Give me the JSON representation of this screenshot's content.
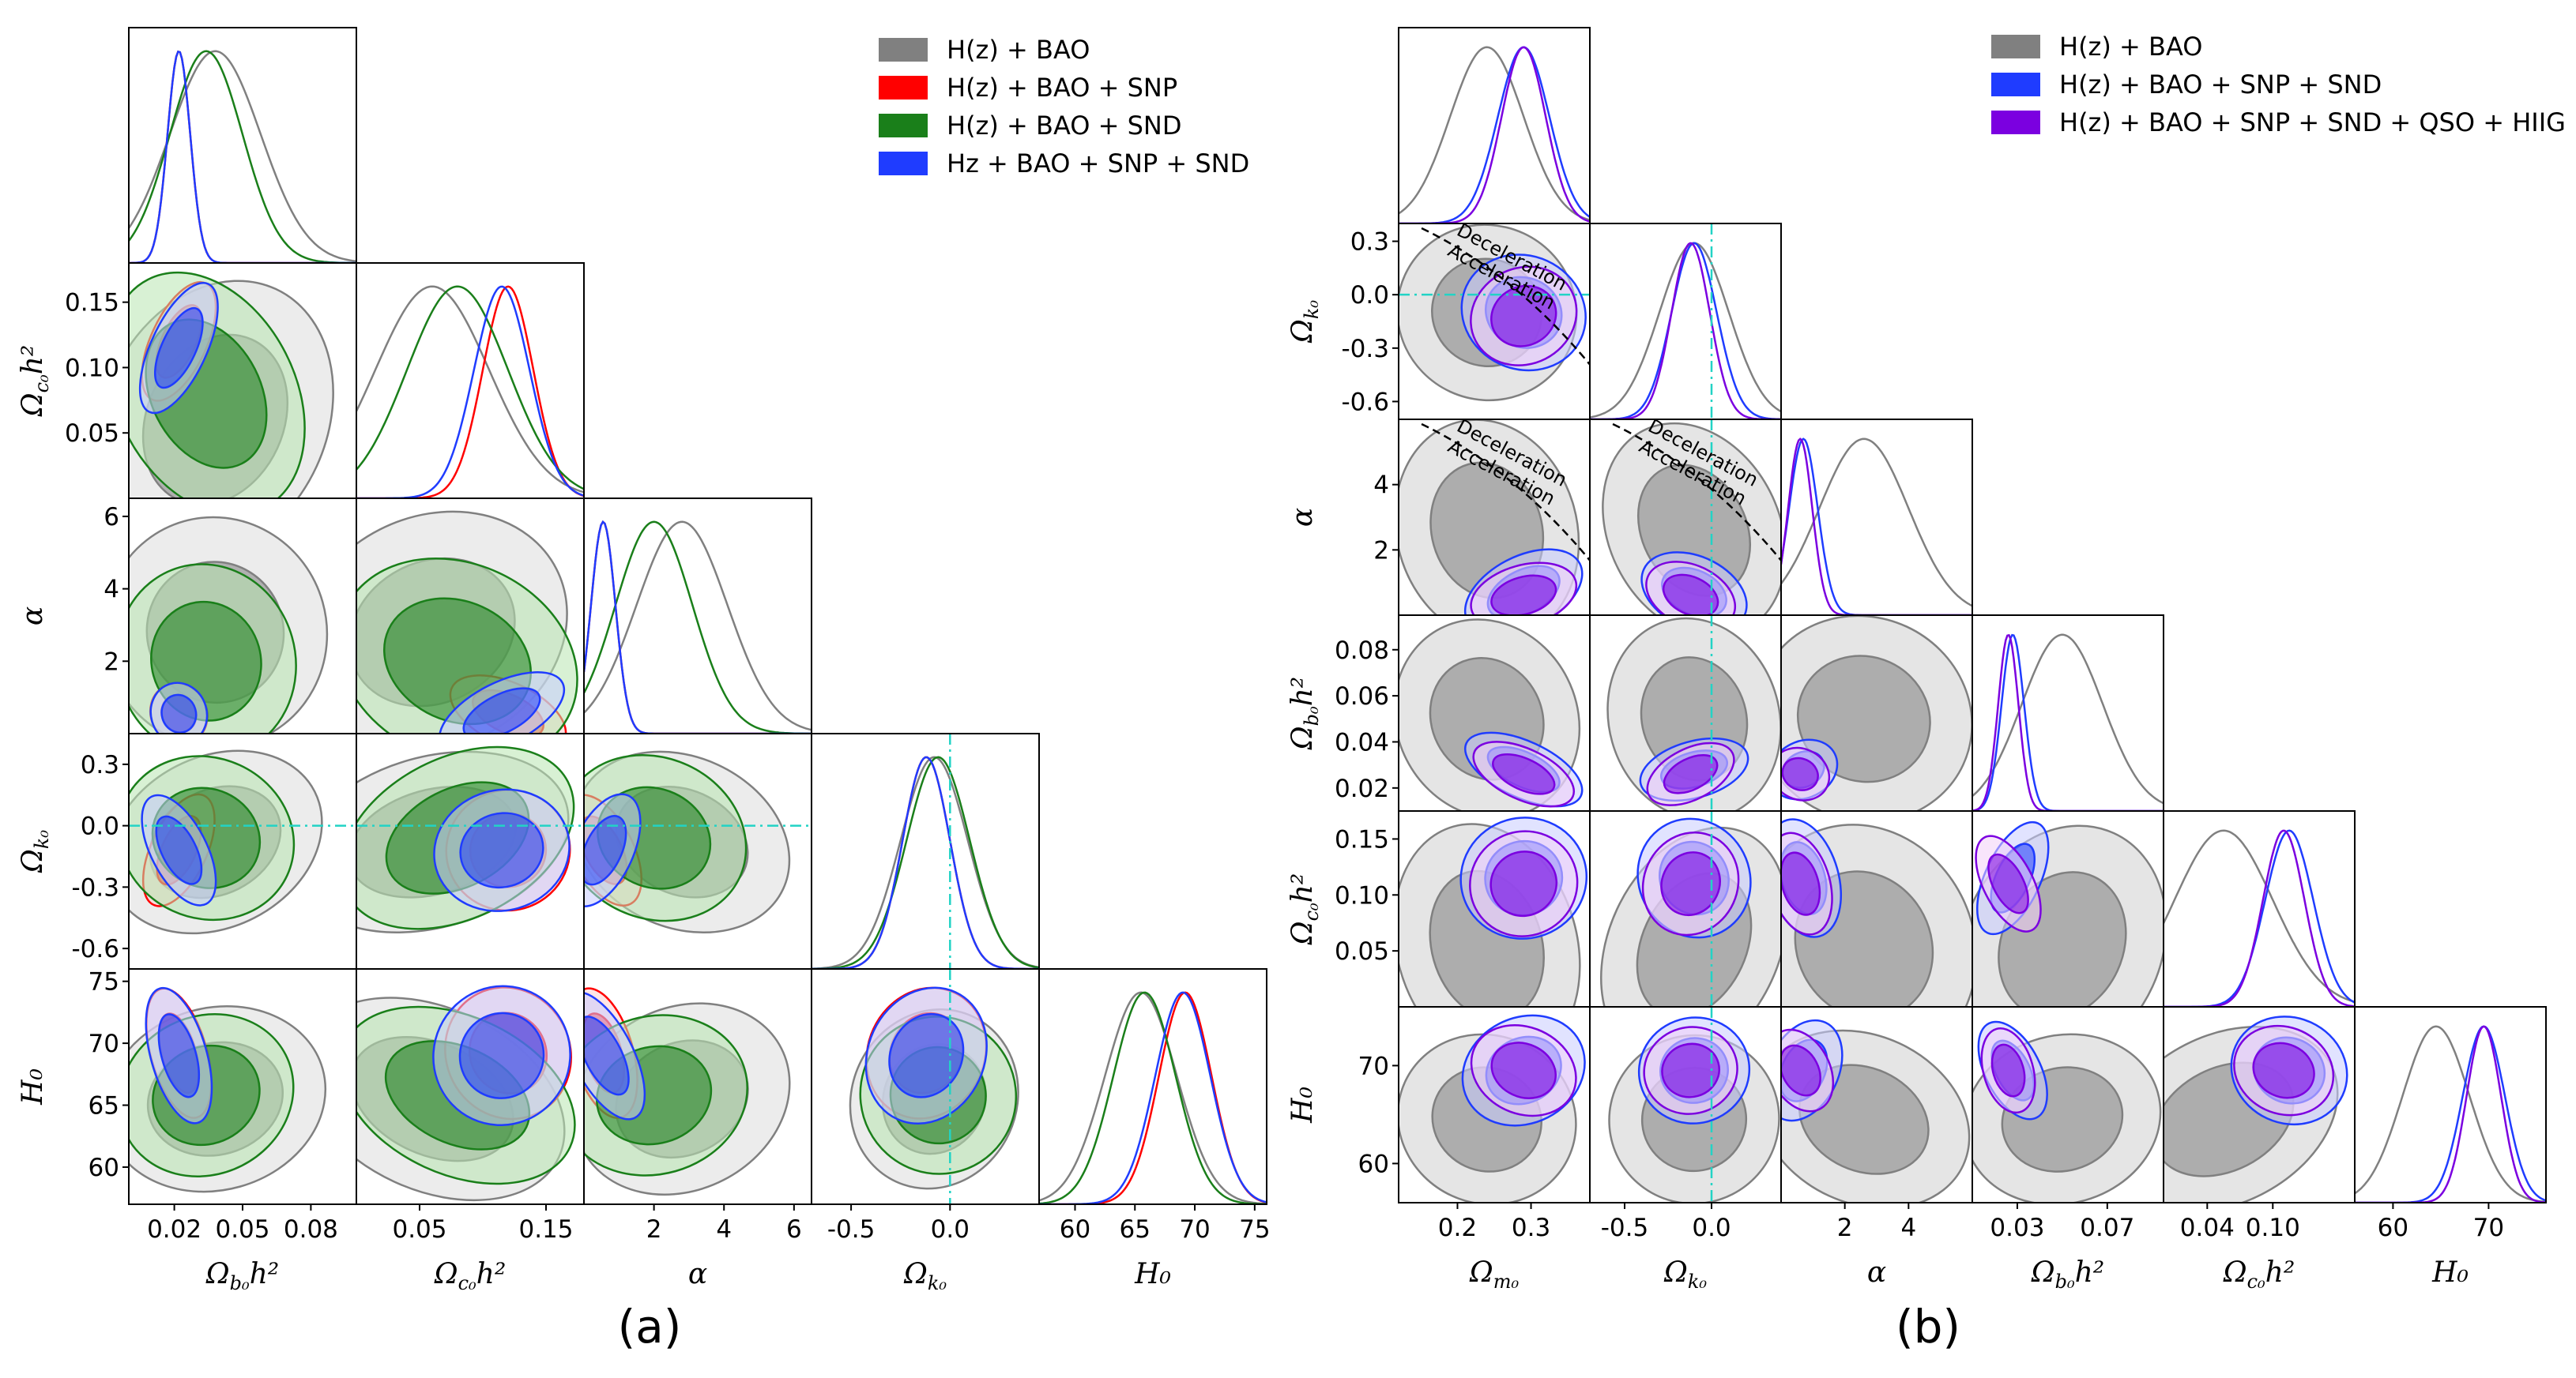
{
  "chart_data": [
    {
      "type": "corner",
      "panel_label": "(a)",
      "parameters": [
        "Ωb0h²",
        "Ωc0h²",
        "α",
        "Ωk0",
        "H0"
      ],
      "axis_labels": [
        "Ω_{b₀}h²",
        "Ω_{c₀}h²",
        "α",
        "Ω_{k₀}",
        "H₀"
      ],
      "ranges": [
        [
          0.0,
          0.1
        ],
        [
          0.0,
          0.18
        ],
        [
          0.0,
          6.5
        ],
        [
          -0.7,
          0.45
        ],
        [
          57,
          76
        ]
      ],
      "ticks": [
        [
          "0.02",
          "0.05",
          "0.08"
        ],
        [
          "0.05",
          "0.10",
          "0.15"
        ],
        [
          "2",
          "4",
          "6"
        ],
        [
          "-0.6",
          "-0.3",
          "0.0",
          "0.3"
        ],
        [
          "60",
          "65",
          "70",
          "75"
        ]
      ],
      "xticks": [
        [
          "0.02",
          "0.05",
          "0.08"
        ],
        [
          "0.05",
          "0.15"
        ],
        [
          "2",
          "4",
          "6"
        ],
        [
          "-0.5",
          "0.0"
        ],
        [
          "60",
          "65",
          "70",
          "75"
        ]
      ],
      "reference_lines": {
        "Ωk0": 0.0
      },
      "series": [
        {
          "name": "H(z) + BAO",
          "color": "#808080",
          "fill": "#dcdcdc",
          "mean": [
            0.038,
            0.06,
            2.8,
            -0.08,
            65.5
          ],
          "std": [
            0.02,
            0.045,
            1.3,
            0.17,
            3.0
          ]
        },
        {
          "name": "H(z) + BAO + SNP",
          "color": "#ff0000",
          "fill": "#ffd0d0",
          "mean": [
            0.022,
            0.12,
            0.55,
            -0.12,
            69.2
          ],
          "std": [
            0.005,
            0.02,
            0.35,
            0.12,
            2.2
          ]
        },
        {
          "name": "H(z) + BAO + SND",
          "color": "#1a7f1a",
          "fill": "#b8e6b0",
          "mean": [
            0.034,
            0.08,
            2.0,
            -0.06,
            65.8
          ],
          "std": [
            0.016,
            0.04,
            1.1,
            0.16,
            2.6
          ]
        },
        {
          "name": "Hz + BAO + SNP + SND",
          "color": "#1f3cff",
          "fill": "#c8ccff",
          "mean": [
            0.022,
            0.115,
            0.55,
            -0.12,
            69.0
          ],
          "std": [
            0.005,
            0.022,
            0.35,
            0.12,
            2.3
          ]
        }
      ]
    },
    {
      "type": "corner",
      "panel_label": "(b)",
      "parameters": [
        "Ωm0",
        "Ωk0",
        "α",
        "Ωb0h²",
        "Ωc0h²",
        "H0"
      ],
      "axis_labels": [
        "Ω_{m₀}",
        "Ω_{k₀}",
        "α",
        "Ω_{b₀}h²",
        "Ω_{c₀}h²",
        "H₀"
      ],
      "ranges": [
        [
          0.12,
          0.38
        ],
        [
          -0.7,
          0.4
        ],
        [
          0.0,
          6.0
        ],
        [
          0.01,
          0.095
        ],
        [
          0.0,
          0.175
        ],
        [
          56,
          76
        ]
      ],
      "ticks": [
        [
          "0.2",
          "0.3"
        ],
        [
          "-0.6",
          "-0.3",
          "0.0",
          "0.3"
        ],
        [
          "2",
          "4"
        ],
        [
          "0.02",
          "0.04",
          "0.06",
          "0.08"
        ],
        [
          "0.05",
          "0.10",
          "0.15"
        ],
        [
          "60",
          "70"
        ]
      ],
      "xticks": [
        [
          "0.2",
          "0.3"
        ],
        [
          "-0.5",
          "0.0"
        ],
        [
          "2",
          "4"
        ],
        [
          "0.03",
          "0.07"
        ],
        [
          "0.04",
          "0.10"
        ],
        [
          "60",
          "70"
        ]
      ],
      "reference_lines": {
        "Ωk0": 0.0
      },
      "series": [
        {
          "name": "H(z) + BAO",
          "color": "#808080",
          "fill": "#d0d0d0",
          "mean": [
            0.24,
            -0.1,
            2.6,
            0.05,
            0.055,
            64.5
          ],
          "std": [
            0.05,
            0.2,
            1.4,
            0.018,
            0.045,
            3.5
          ]
        },
        {
          "name": "H(z) + BAO + SNP + SND",
          "color": "#1f3cff",
          "fill": "#c8ccff",
          "mean": [
            0.29,
            -0.1,
            0.7,
            0.028,
            0.115,
            69.5
          ],
          "std": [
            0.035,
            0.13,
            0.45,
            0.005,
            0.022,
            2.2
          ]
        },
        {
          "name": "H(z) + BAO + SNP + SND + QSO + HIIG",
          "color": "#7b00e0",
          "fill": "#f2d0f7",
          "mean": [
            0.29,
            -0.12,
            0.6,
            0.026,
            0.11,
            69.5
          ],
          "std": [
            0.03,
            0.11,
            0.38,
            0.0045,
            0.019,
            1.8
          ]
        }
      ],
      "annotations": [
        "Deceleration",
        "Acceleration"
      ]
    }
  ]
}
